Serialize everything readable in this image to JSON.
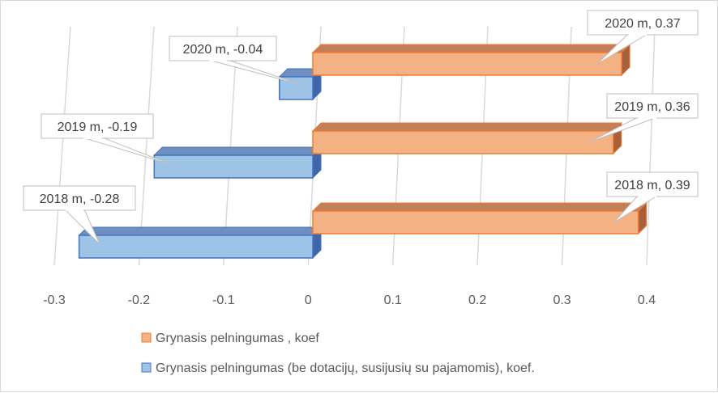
{
  "chart_data": {
    "type": "bar",
    "orientation": "horizontal",
    "style": "3d-clustered-bar",
    "categories": [
      "2018 m",
      "2019 m",
      "2020 m"
    ],
    "series": [
      {
        "name": "Grynasis pelningumas , koef",
        "values": [
          0.39,
          0.36,
          0.37
        ],
        "data_labels": [
          "2018 m, 0.39",
          "2019 m, 0.36",
          "2020 m, 0.37"
        ],
        "color": "#f4b183",
        "edge_color": "#ed7d31",
        "top_color": "#c27f59",
        "side_color": "#a8603a"
      },
      {
        "name": "Grynasis pelningumas (be dotacijų, susijusių su pajamomis), koef.",
        "values": [
          -0.28,
          -0.19,
          -0.04
        ],
        "data_labels": [
          "2018 m, -0.28",
          "2019 m, -0.19",
          "2020 m, -0.04"
        ],
        "color": "#9dc3e6",
        "edge_color": "#4472c4",
        "top_color": "#6f8fbf",
        "side_color": "#3f67a8"
      }
    ],
    "xlim": [
      -0.3,
      0.4
    ],
    "x_ticks": [
      -0.3,
      -0.2,
      -0.1,
      0,
      0.1,
      0.2,
      0.3,
      0.4
    ],
    "x_tick_labels": [
      "-0.3",
      "-0.2",
      "-0.1",
      "0",
      "0.1",
      "0.2",
      "0.3",
      "0.4"
    ],
    "title": "",
    "xlabel": "",
    "ylabel": "",
    "grid": "vertical",
    "legend_position": "bottom"
  }
}
